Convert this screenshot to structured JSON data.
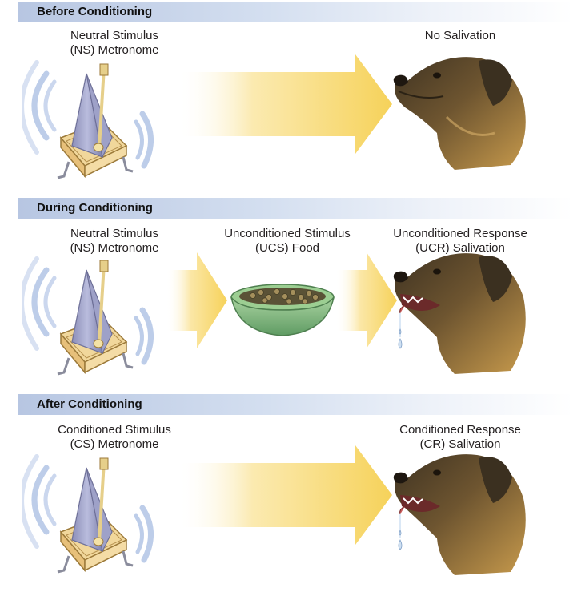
{
  "panels": [
    {
      "header": "Before Conditioning",
      "left_label": [
        "Neutral Stimulus",
        "(NS) Metronome"
      ],
      "right_label": [
        "No Salivation"
      ]
    },
    {
      "header": "During Conditioning",
      "left_label": [
        "Neutral Stimulus",
        "(NS) Metronome"
      ],
      "middle_label": [
        "Unconditioned Stimulus",
        "(UCS) Food"
      ],
      "right_label": [
        "Unconditioned Response",
        "(UCR) Salivation"
      ]
    },
    {
      "header": "After Conditioning",
      "left_label": [
        "Conditioned Stimulus",
        "(CS) Metronome"
      ],
      "right_label": [
        "Conditioned Response",
        "(CR) Salivation"
      ]
    }
  ],
  "colors": {
    "header_gradient_start": "#b7c6e2",
    "arrow_yellow": "#f7d96a",
    "sound_wave_blue": "#9fb6dd",
    "dog_fur": "#b58a3e",
    "bowl_green": "#8fc08a"
  }
}
